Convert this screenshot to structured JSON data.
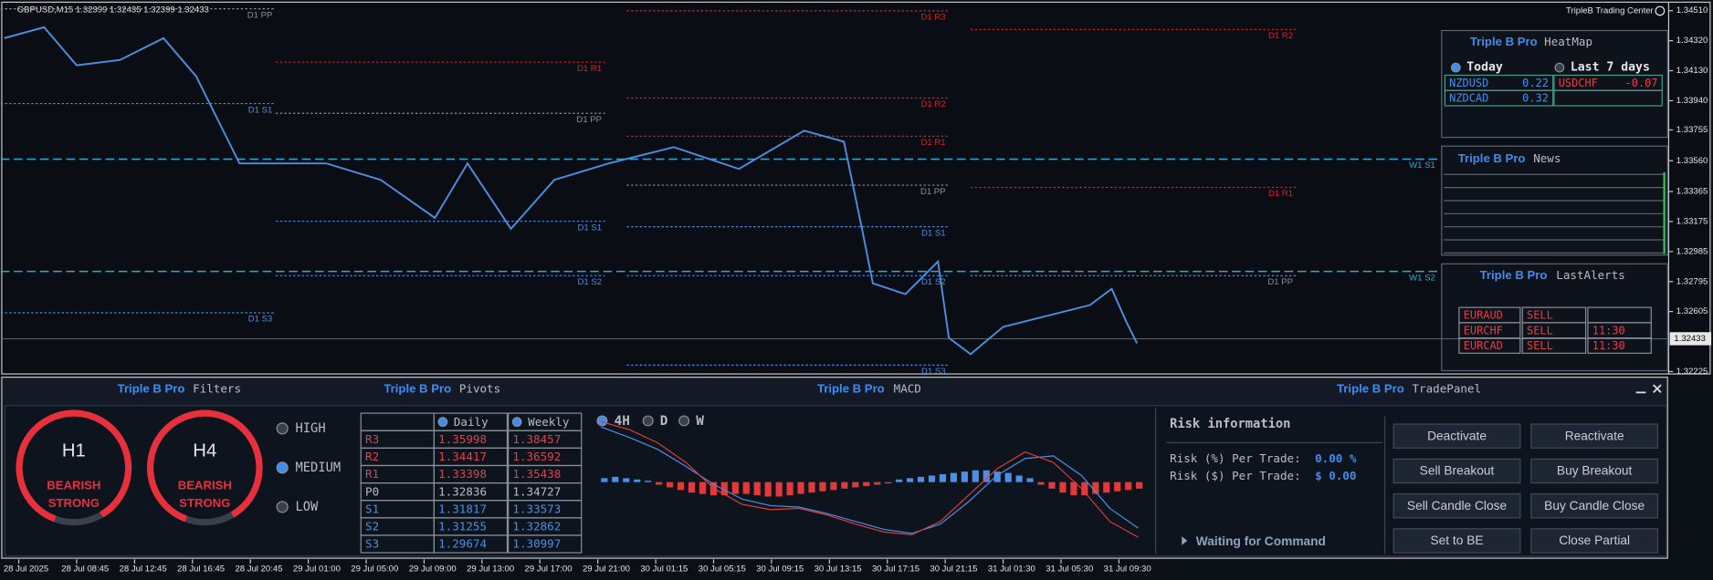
{
  "price_chart": {
    "symbol_header": "GBPUSD,M15  1.32399 1.32435 1.32399 1.32433",
    "brand": "TripleB Trading Center",
    "ylim": [
      1.3221,
      1.3455
    ],
    "xlim": [
      -5,
      455
    ],
    "yticks": [
      {
        "value": 1.3451,
        "label": "1.34510"
      },
      {
        "value": 1.3432,
        "label": "1.34320"
      },
      {
        "value": 1.3413,
        "label": "1.34130"
      },
      {
        "value": 1.3394,
        "label": "1.33940"
      },
      {
        "value": 1.33755,
        "label": "1.33755"
      },
      {
        "value": 1.3356,
        "label": "1.33560"
      },
      {
        "value": 1.33365,
        "label": "1.33365"
      },
      {
        "value": 1.33175,
        "label": "1.33175"
      },
      {
        "value": 1.32985,
        "label": "1.32985"
      },
      {
        "value": 1.32795,
        "label": "1.32795"
      },
      {
        "value": 1.32605,
        "label": "1.32605"
      },
      {
        "value": 1.32225,
        "label": "1.32225"
      }
    ],
    "current_price": {
      "value": 1.32433,
      "label": "1.32433"
    },
    "xticks": [
      {
        "value": 0,
        "label": "28 Jul 2025"
      },
      {
        "value": 16,
        "label": "28 Jul 08:45"
      },
      {
        "value": 32,
        "label": "28 Jul 12:45"
      },
      {
        "value": 48,
        "label": "28 Jul 16:45"
      },
      {
        "value": 64,
        "label": "28 Jul 20:45"
      },
      {
        "value": 80,
        "label": "29 Jul 01:00"
      },
      {
        "value": 96,
        "label": "29 Jul 05:00"
      },
      {
        "value": 112,
        "label": "29 Jul 09:00"
      },
      {
        "value": 128,
        "label": "29 Jul 13:00"
      },
      {
        "value": 144,
        "label": "29 Jul 17:00"
      },
      {
        "value": 160,
        "label": "29 Jul 21:00"
      },
      {
        "value": 176,
        "label": "30 Jul 01:15"
      },
      {
        "value": 192,
        "label": "30 Jul 05:15"
      },
      {
        "value": 208,
        "label": "30 Jul 09:15"
      },
      {
        "value": 224,
        "label": "30 Jul 13:15"
      },
      {
        "value": 240,
        "label": "30 Jul 17:15"
      },
      {
        "value": 256,
        "label": "30 Jul 21:15"
      },
      {
        "value": 272,
        "label": "31 Jul 01:30"
      },
      {
        "value": 288,
        "label": "31 Jul 05:30"
      },
      {
        "value": 304,
        "label": "31 Jul 09:30"
      }
    ],
    "closes": {
      "color": "#4a90e2",
      "x": [
        -4,
        7,
        16,
        28,
        40,
        49,
        55,
        61,
        73,
        85,
        100,
        115,
        124,
        136,
        148,
        163,
        181,
        199,
        217,
        228,
        233,
        236,
        245,
        254,
        257,
        263,
        272,
        284,
        296,
        302,
        306,
        309
      ],
      "values": [
        1.34336,
        1.34405,
        1.34164,
        1.34198,
        1.34336,
        1.34095,
        1.33819,
        1.33543,
        1.33543,
        1.33543,
        1.33439,
        1.33198,
        1.33543,
        1.33129,
        1.33439,
        1.33543,
        1.33646,
        1.33508,
        1.3375,
        1.33681,
        1.33129,
        1.32784,
        1.32715,
        1.32922,
        1.32439,
        1.32335,
        1.32508,
        1.32577,
        1.32646,
        1.32749,
        1.32542,
        1.32404
      ]
    },
    "levels": [
      {
        "label": "D1 PP",
        "price": 1.34522,
        "from": -5,
        "to": 71,
        "color": "#8a8f98"
      },
      {
        "label": "D1 R3",
        "price": 1.34509,
        "from": 168,
        "to": 257,
        "color": "#d8202a"
      },
      {
        "label": "D1 R2",
        "price": 1.34391,
        "from": 263,
        "to": 353,
        "color": "#d8202a"
      },
      {
        "label": "D1 R1",
        "price": 1.34184,
        "from": 71,
        "to": 162,
        "color": "#d8202a"
      },
      {
        "label": "D1 S1",
        "price": 1.33922,
        "from": -5,
        "to": 71,
        "color": "#4a90e2"
      },
      {
        "label": "D1 PP",
        "price": 1.3386,
        "from": 71,
        "to": 162,
        "color": "#8a8f98"
      },
      {
        "label": "D1 R2",
        "price": 1.33957,
        "from": 168,
        "to": 257,
        "color": "#d8202a"
      },
      {
        "label": "D1 R1",
        "price": 1.33715,
        "from": 168,
        "to": 257,
        "color": "#d8202a"
      },
      {
        "label": "W1 S1",
        "price": 1.3357,
        "from": -5,
        "to": 392,
        "color": "#2fa8d8"
      },
      {
        "label": "D1 PP",
        "price": 1.33405,
        "from": 168,
        "to": 257,
        "color": "#8a8f98"
      },
      {
        "label": "D1 R1",
        "price": 1.33391,
        "from": 263,
        "to": 353,
        "color": "#d8202a"
      },
      {
        "label": "D1 S1",
        "price": 1.33177,
        "from": 71,
        "to": 162,
        "color": "#4a90e2"
      },
      {
        "label": "D1 S1",
        "price": 1.33142,
        "from": 168,
        "to": 257,
        "color": "#4a90e2"
      },
      {
        "label": "W1 S2",
        "price": 1.32859,
        "from": -5,
        "to": 392,
        "color": "#2fa8d8"
      },
      {
        "label": "D1 S2",
        "price": 1.32832,
        "from": 71,
        "to": 162,
        "color": "#4a90e2"
      },
      {
        "label": "D1 S2",
        "price": 1.32832,
        "from": 168,
        "to": 257,
        "color": "#4a90e2"
      },
      {
        "label": "D1 PP",
        "price": 1.32832,
        "from": 263,
        "to": 353,
        "color": "#8a8f98"
      },
      {
        "label": "D1 S3",
        "price": 1.32597,
        "from": -5,
        "to": 71,
        "color": "#4a90e2"
      },
      {
        "label": "D1 S3",
        "price": 1.32266,
        "from": 168,
        "to": 257,
        "color": "#4a90e2"
      }
    ]
  },
  "heatmap": {
    "brand": "Triple B Pro",
    "title": "HeatMap",
    "tabs": [
      "Today",
      "Last 7 days"
    ],
    "cells": [
      {
        "pair": "NZDUSD",
        "value": 0.22
      },
      {
        "pair": "USDCHF",
        "value": -0.07
      },
      {
        "pair": "NZDCAD",
        "value": 0.32
      }
    ]
  },
  "news": {
    "brand": "Triple B Pro",
    "title": "News"
  },
  "alerts": {
    "brand": "Triple B Pro",
    "title": "LastAlerts",
    "rows": [
      [
        "EURAUD",
        "SELL"
      ],
      [
        "EURCHF",
        "SELL",
        "11:30"
      ],
      [
        "EURCAD",
        "SELL",
        "11:30"
      ]
    ]
  },
  "filters": {
    "brand": "Triple B Pro",
    "title": "Filters",
    "gauges": [
      {
        "timeframe": "H1",
        "signal": [
          "BEARISH",
          "STRONG"
        ]
      },
      {
        "timeframe": "H4",
        "signal": [
          "BEARISH",
          "STRONG"
        ]
      }
    ],
    "options": [
      "HIGH",
      "MEDIUM",
      "LOW"
    ],
    "selected": "MEDIUM"
  },
  "pivots": {
    "brand": "Triple B Pro",
    "title": "Pivots",
    "columns": [
      "Daily",
      "Weekly"
    ],
    "rows": [
      [
        "R3",
        "1.35998",
        "1.38457"
      ],
      [
        "R2",
        "1.34417",
        "1.36592"
      ],
      [
        "R1",
        "1.33398",
        "1.35438"
      ],
      [
        "P0",
        "1.32836",
        "1.34727"
      ],
      [
        "S1",
        "1.31817",
        "1.33573"
      ],
      [
        "S2",
        "1.31255",
        "1.32862"
      ],
      [
        "S3",
        "1.29674",
        "1.30997"
      ]
    ]
  },
  "macd": {
    "brand": "Triple B Pro",
    "title": "MACD",
    "timeframes": [
      "4H",
      "D",
      "W"
    ],
    "selected": "4H",
    "ylim": [
      -4.8,
      5.5
    ],
    "histogram": [
      0.3,
      0.4,
      0.3,
      0.2,
      0.1,
      -0.2,
      -0.4,
      -0.6,
      -0.8,
      -0.9,
      -1.0,
      -1.0,
      -0.9,
      -0.9,
      -1.0,
      -1.1,
      -1.1,
      -1.0,
      -0.9,
      -0.8,
      -0.7,
      -0.6,
      -0.5,
      -0.4,
      -0.3,
      -0.2,
      -0.1,
      0.2,
      0.3,
      0.4,
      0.5,
      0.6,
      0.7,
      0.8,
      0.9,
      0.9,
      0.8,
      0.7,
      0.5,
      0.3,
      -0.2,
      -0.5,
      -0.8,
      -1.0,
      -1.0,
      -0.9,
      -0.8,
      -0.7,
      -0.6,
      -0.5
    ],
    "lines": [
      {
        "color": "#4a8fe8",
        "values": [
          4.2,
          3.4,
          2.5,
          1.2,
          -0.2,
          -1.3,
          -1.8,
          -1.9,
          -2.4,
          -3.0,
          -3.6,
          -3.9,
          -3.2,
          -1.5,
          0.5,
          1.8,
          2.0,
          0.5,
          -2.0,
          -3.5
        ]
      },
      {
        "color": "#e03a3a",
        "values": [
          4.6,
          4.0,
          3.0,
          1.5,
          -0.5,
          -1.7,
          -2.1,
          -2.0,
          -2.5,
          -3.2,
          -3.8,
          -4.0,
          -3.0,
          -1.0,
          1.0,
          2.3,
          1.5,
          -0.5,
          -3.0,
          -4.2
        ]
      }
    ]
  },
  "trade_panel": {
    "brand": "Triple B Pro",
    "title": "TradePanel",
    "risk_title": "Risk information",
    "risk": [
      [
        "Risk (%) Per Trade:",
        "0.00 %"
      ],
      [
        "Risk ($) Per Trade:",
        "$ 0.00"
      ]
    ],
    "buttons": [
      "Deactivate",
      "Reactivate",
      "Sell Breakout",
      "Buy Breakout",
      "Sell Candle Close",
      "Buy Candle Close",
      "Set to BE",
      "Close Partial"
    ],
    "status": "Waiting for Command"
  }
}
